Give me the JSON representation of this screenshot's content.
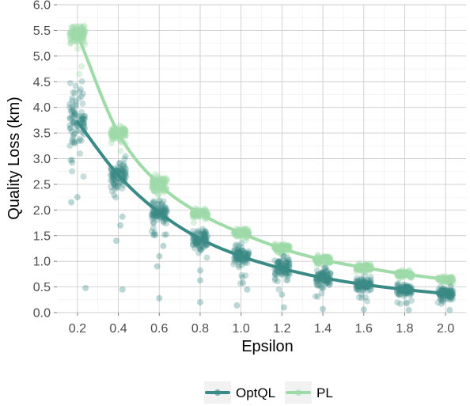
{
  "chart_data": {
    "type": "scatter",
    "xlabel": "Epsilon",
    "ylabel": "Quality Loss (km)",
    "x": [
      0.2,
      0.4,
      0.6,
      0.8,
      1.0,
      1.2,
      1.4,
      1.6,
      1.8,
      2.0
    ],
    "x_ticks": [
      "0.2",
      "0.4",
      "0.6",
      "0.8",
      "1.0",
      "1.2",
      "1.4",
      "1.6",
      "1.8",
      "2.0"
    ],
    "xlim": [
      0.1,
      2.1
    ],
    "ylim": [
      0.0,
      6.0
    ],
    "y_ticks": [
      "0.0",
      "0.5",
      "1.0",
      "1.5",
      "2.0",
      "2.5",
      "3.0",
      "3.5",
      "4.0",
      "4.5",
      "5.0",
      "5.5",
      "6.0"
    ],
    "grid": true,
    "legend_position": "bottom",
    "series": [
      {
        "name": "OptQL",
        "color": "#3a8a86",
        "trend": [
          3.72,
          2.68,
          1.95,
          1.44,
          1.1,
          0.86,
          0.68,
          0.55,
          0.45,
          0.37
        ],
        "spread_low": [
          2.6,
          2.2,
          1.5,
          0.95,
          0.55,
          0.45,
          0.3,
          0.2,
          0.15,
          0.12
        ],
        "spread_high": [
          4.55,
          3.05,
          2.2,
          1.7,
          1.35,
          1.1,
          0.88,
          0.72,
          0.6,
          0.52
        ],
        "outliers": [
          [
            0.17,
            2.15
          ],
          [
            0.2,
            2.25
          ],
          [
            0.24,
            0.48
          ],
          [
            0.39,
            1.4
          ],
          [
            0.41,
            1.7
          ],
          [
            0.42,
            1.87
          ],
          [
            0.42,
            0.45
          ],
          [
            0.59,
            0.9
          ],
          [
            0.6,
            1.1
          ],
          [
            0.62,
            1.3
          ],
          [
            0.6,
            0.28
          ],
          [
            0.8,
            0.63
          ],
          [
            0.8,
            0.82
          ],
          [
            0.8,
            0.2
          ],
          [
            0.98,
            0.14
          ],
          [
            1.03,
            0.45
          ],
          [
            1.01,
            0.58
          ],
          [
            1.21,
            0.1
          ],
          [
            1.2,
            0.35
          ],
          [
            1.4,
            0.07
          ],
          [
            1.6,
            0.06
          ],
          [
            1.82,
            0.05
          ],
          [
            2.02,
            0.05
          ]
        ]
      },
      {
        "name": "PL",
        "color": "#9fdba8",
        "trend": [
          5.42,
          3.5,
          2.5,
          1.93,
          1.55,
          1.25,
          1.03,
          0.88,
          0.75,
          0.65
        ],
        "spread_low": [
          5.1,
          3.3,
          2.3,
          1.75,
          1.4,
          1.12,
          0.92,
          0.78,
          0.66,
          0.57
        ],
        "spread_high": [
          5.65,
          3.65,
          2.7,
          2.05,
          1.65,
          1.35,
          1.12,
          0.96,
          0.83,
          0.72
        ],
        "outliers": [
          [
            0.22,
            4.8
          ],
          [
            0.21,
            4.65
          ],
          [
            0.41,
            3.15
          ],
          [
            0.6,
            2.2
          ]
        ]
      }
    ]
  }
}
